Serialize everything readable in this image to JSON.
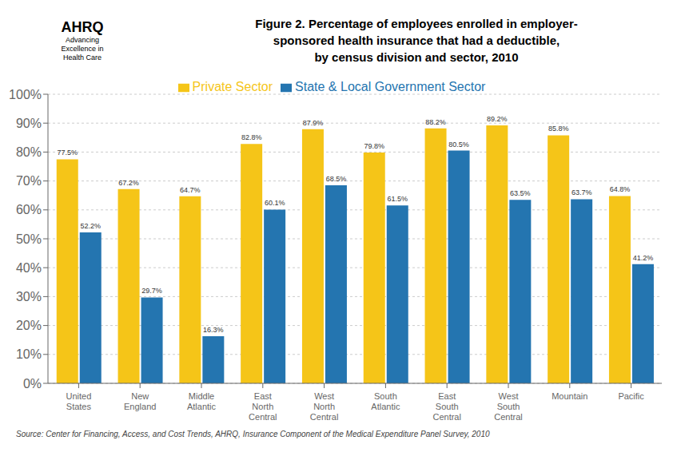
{
  "chart_data": {
    "type": "bar",
    "title": "Figure 2. Percentage of employees enrolled in employer-\nsponsored health insurance that had a deductible,\nby census division and sector, 2010",
    "annotations": [
      "AHRQ",
      "Advancing\nExcellence in\nHealth Care",
      "Source: Center for Financing, Access, and Cost Trends, AHRQ, Insurance Component of the Medical Expenditure Panel Survey,  2010"
    ],
    "categories": [
      "United\nStates",
      "New\nEngland",
      "Middle\nAtlantic",
      "East\nNorth\nCentral",
      "West\nNorth\nCentral",
      "South\nAtlantic",
      "East\nSouth\nCentral",
      "West\nSouth\nCentral",
      "Mountain",
      "Pacific"
    ],
    "series": [
      {
        "name": "Private Sector",
        "color": "#F5C518",
        "values": [
          77.5,
          67.2,
          64.7,
          82.8,
          87.9,
          79.8,
          88.2,
          89.2,
          85.8,
          64.8
        ],
        "value_labels": [
          "77.5%",
          "67.2%",
          "64.7%",
          "82.8%",
          "87.9%",
          "79.8%",
          "88.2%",
          "89.2%",
          "85.8%",
          "64.8%"
        ]
      },
      {
        "name": "State & Local Government Sector",
        "color": "#2475B0",
        "values": [
          52.2,
          29.7,
          16.3,
          60.1,
          68.5,
          61.5,
          80.5,
          63.5,
          63.7,
          41.2
        ],
        "value_labels": [
          "52.2%",
          "29.7%",
          "16.3%",
          "60.1%",
          "68.5%",
          "61.5%",
          "80.5%",
          "63.5%",
          "63.7%",
          "41.2%"
        ]
      }
    ],
    "ylim": [
      0,
      100
    ],
    "yticks": [
      {
        "value": 0,
        "label": "0%"
      },
      {
        "value": 10,
        "label": "10%"
      },
      {
        "value": 20,
        "label": "20%"
      },
      {
        "value": 30,
        "label": "30%"
      },
      {
        "value": 40,
        "label": "40%"
      },
      {
        "value": 50,
        "label": "50%"
      },
      {
        "value": 60,
        "label": "60%"
      },
      {
        "value": 70,
        "label": "70%"
      },
      {
        "value": 80,
        "label": "80%"
      },
      {
        "value": 90,
        "label": "90%"
      },
      {
        "value": 100,
        "label": "100%"
      }
    ],
    "grid": true,
    "legend": "top",
    "data_labels": true
  }
}
